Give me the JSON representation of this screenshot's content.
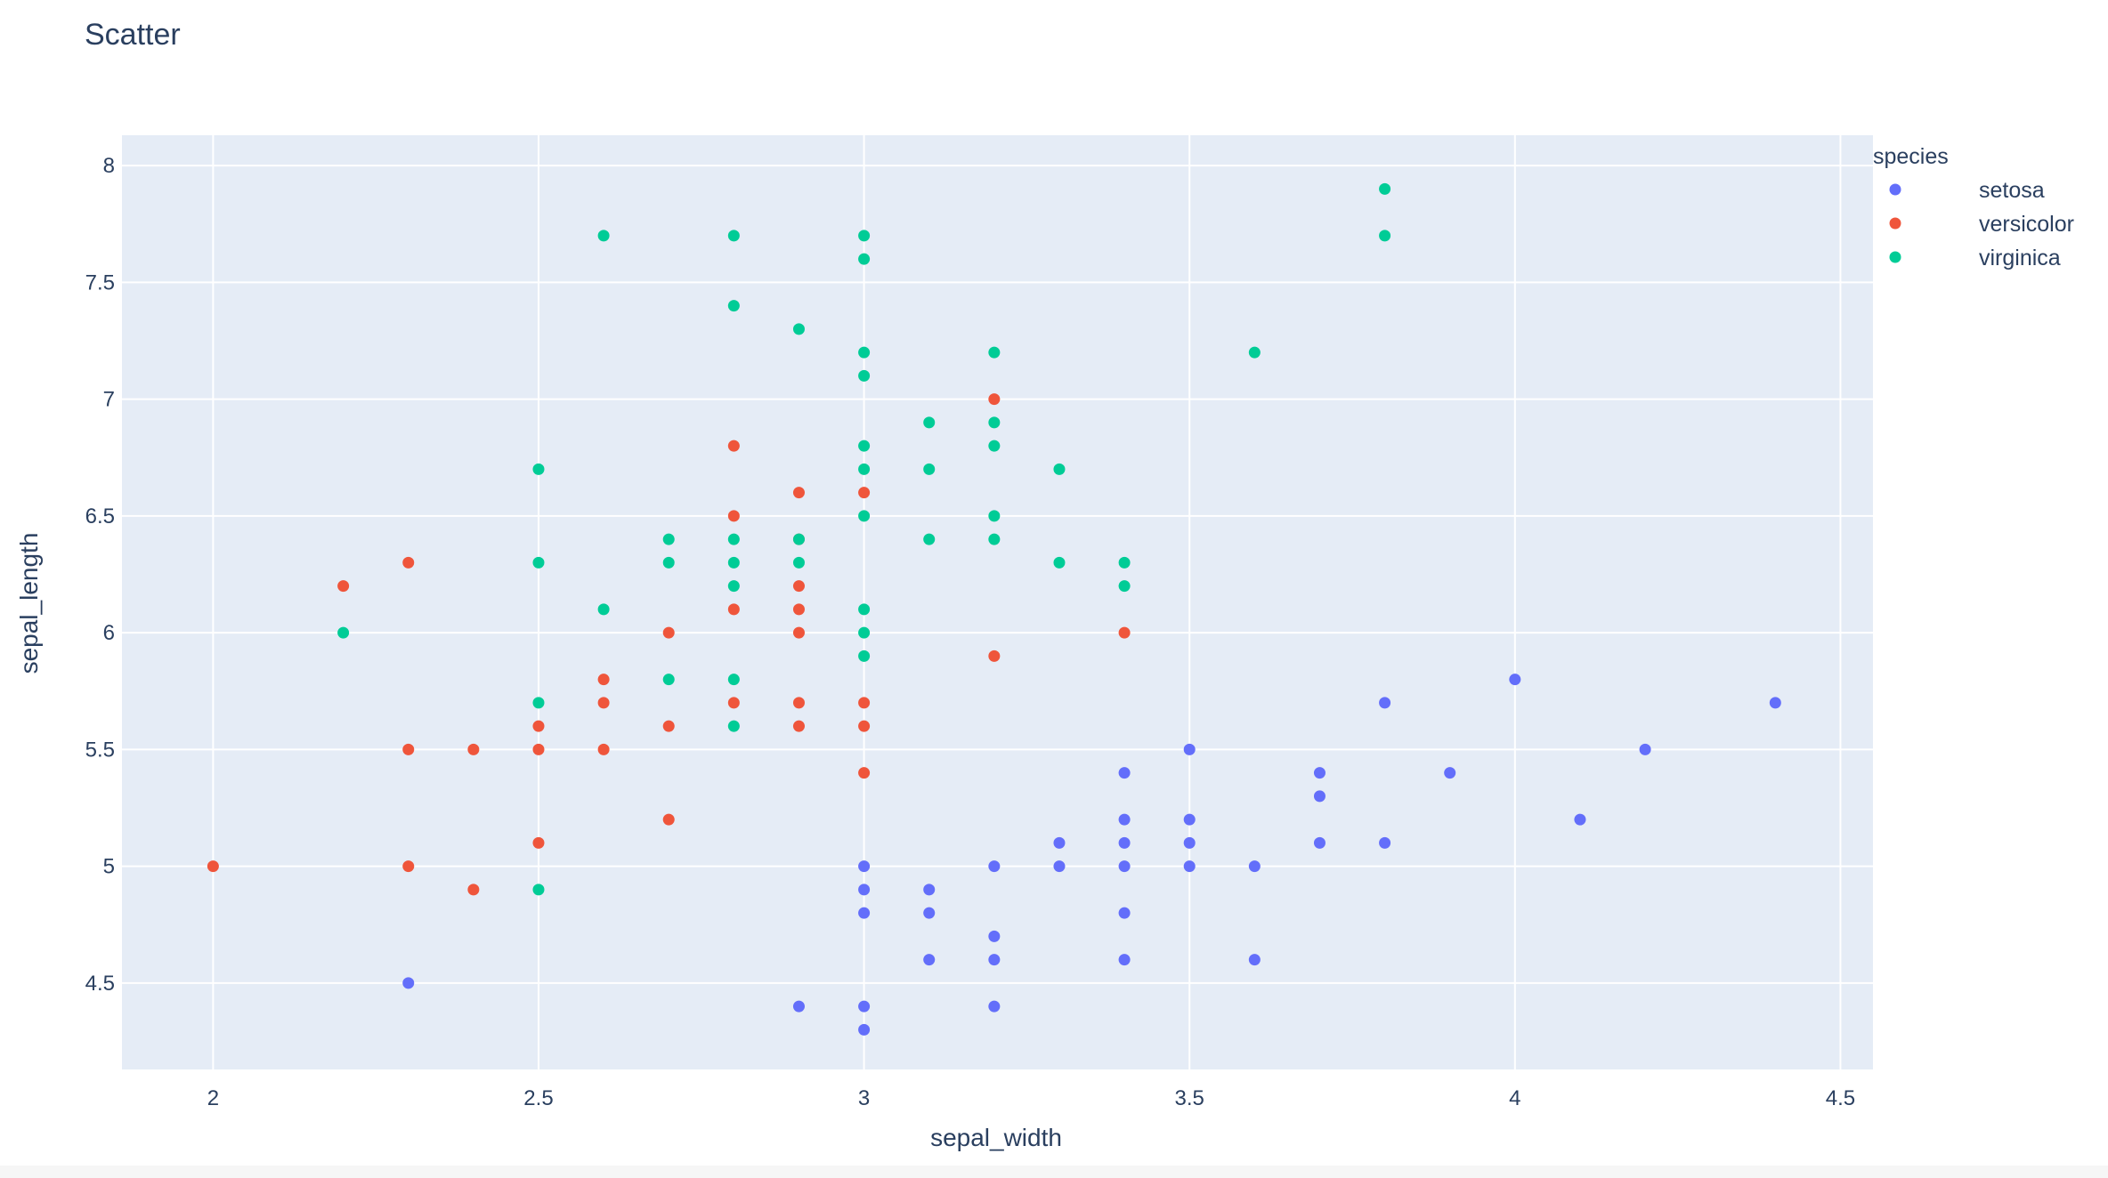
{
  "chart_data": {
    "type": "scatter",
    "title": "Scatter",
    "xlabel": "sepal_width",
    "ylabel": "sepal_length",
    "xlim": [
      1.86,
      4.55
    ],
    "ylim": [
      4.13,
      8.13
    ],
    "xticks": [
      2,
      2.5,
      3,
      3.5,
      4,
      4.5
    ],
    "xtick_labels": [
      "2",
      "2.5",
      "3",
      "3.5",
      "4",
      "4.5"
    ],
    "yticks": [
      4.5,
      5,
      5.5,
      6,
      6.5,
      7,
      7.5,
      8
    ],
    "ytick_labels": [
      "4.5",
      "5",
      "5.5",
      "6",
      "6.5",
      "7",
      "7.5",
      "8"
    ],
    "grid": true,
    "legend": {
      "title": "species",
      "placement": "right"
    },
    "series": [
      {
        "name": "setosa",
        "color": "#636efa",
        "points": [
          [
            2.3,
            4.5
          ],
          [
            2.9,
            4.4
          ],
          [
            3.0,
            4.4
          ],
          [
            3.0,
            4.3
          ],
          [
            3.2,
            4.4
          ],
          [
            3.0,
            5.0
          ],
          [
            3.0,
            4.9
          ],
          [
            3.0,
            4.8
          ],
          [
            3.1,
            4.9
          ],
          [
            3.1,
            4.8
          ],
          [
            3.1,
            4.6
          ],
          [
            3.2,
            5.0
          ],
          [
            3.2,
            4.7
          ],
          [
            3.2,
            4.6
          ],
          [
            3.3,
            5.1
          ],
          [
            3.3,
            5.0
          ],
          [
            3.4,
            5.4
          ],
          [
            3.4,
            5.2
          ],
          [
            3.4,
            5.1
          ],
          [
            3.4,
            5.0
          ],
          [
            3.4,
            4.8
          ],
          [
            3.4,
            4.6
          ],
          [
            3.5,
            5.5
          ],
          [
            3.5,
            5.2
          ],
          [
            3.5,
            5.1
          ],
          [
            3.5,
            5.0
          ],
          [
            3.6,
            5.0
          ],
          [
            3.6,
            4.6
          ],
          [
            3.7,
            5.4
          ],
          [
            3.7,
            5.3
          ],
          [
            3.7,
            5.1
          ],
          [
            3.8,
            5.7
          ],
          [
            3.8,
            5.1
          ],
          [
            3.9,
            5.4
          ],
          [
            4.0,
            5.8
          ],
          [
            4.1,
            5.2
          ],
          [
            4.2,
            5.5
          ],
          [
            4.4,
            5.7
          ]
        ]
      },
      {
        "name": "versicolor",
        "color": "#ef553b",
        "points": [
          [
            2.0,
            5.0
          ],
          [
            2.2,
            6.2
          ],
          [
            2.3,
            6.3
          ],
          [
            2.3,
            5.5
          ],
          [
            2.3,
            5.0
          ],
          [
            2.4,
            5.5
          ],
          [
            2.4,
            4.9
          ],
          [
            2.5,
            5.6
          ],
          [
            2.5,
            5.5
          ],
          [
            2.5,
            5.1
          ],
          [
            2.6,
            5.8
          ],
          [
            2.6,
            5.7
          ],
          [
            2.6,
            5.5
          ],
          [
            2.7,
            6.0
          ],
          [
            2.7,
            5.6
          ],
          [
            2.7,
            5.2
          ],
          [
            2.8,
            6.8
          ],
          [
            2.8,
            6.5
          ],
          [
            2.8,
            6.1
          ],
          [
            2.8,
            5.7
          ],
          [
            2.9,
            6.6
          ],
          [
            2.9,
            6.4
          ],
          [
            2.9,
            6.2
          ],
          [
            2.9,
            6.1
          ],
          [
            2.9,
            6.0
          ],
          [
            2.9,
            5.7
          ],
          [
            2.9,
            5.6
          ],
          [
            3.0,
            6.6
          ],
          [
            3.0,
            5.7
          ],
          [
            3.0,
            5.6
          ],
          [
            3.0,
            5.4
          ],
          [
            3.2,
            7.0
          ],
          [
            3.2,
            5.9
          ],
          [
            3.4,
            6.0
          ]
        ]
      },
      {
        "name": "virginica",
        "color": "#00cc96",
        "points": [
          [
            2.2,
            6.0
          ],
          [
            2.5,
            6.7
          ],
          [
            2.5,
            6.3
          ],
          [
            2.5,
            5.7
          ],
          [
            2.5,
            4.9
          ],
          [
            2.6,
            7.7
          ],
          [
            2.6,
            6.1
          ],
          [
            2.7,
            6.4
          ],
          [
            2.7,
            6.3
          ],
          [
            2.7,
            5.8
          ],
          [
            2.8,
            7.7
          ],
          [
            2.8,
            7.4
          ],
          [
            2.8,
            6.4
          ],
          [
            2.8,
            6.3
          ],
          [
            2.8,
            6.2
          ],
          [
            2.8,
            5.8
          ],
          [
            2.8,
            5.6
          ],
          [
            2.9,
            7.3
          ],
          [
            2.9,
            6.4
          ],
          [
            2.9,
            6.3
          ],
          [
            3.0,
            7.7
          ],
          [
            3.0,
            7.6
          ],
          [
            3.0,
            7.2
          ],
          [
            3.0,
            7.1
          ],
          [
            3.0,
            6.8
          ],
          [
            3.0,
            6.7
          ],
          [
            3.0,
            6.5
          ],
          [
            3.0,
            6.1
          ],
          [
            3.0,
            6.0
          ],
          [
            3.0,
            5.9
          ],
          [
            3.1,
            6.9
          ],
          [
            3.1,
            6.7
          ],
          [
            3.1,
            6.4
          ],
          [
            3.2,
            7.2
          ],
          [
            3.2,
            6.9
          ],
          [
            3.2,
            6.8
          ],
          [
            3.2,
            6.5
          ],
          [
            3.2,
            6.4
          ],
          [
            3.3,
            6.7
          ],
          [
            3.3,
            6.3
          ],
          [
            3.4,
            6.3
          ],
          [
            3.4,
            6.2
          ],
          [
            3.6,
            7.2
          ],
          [
            3.8,
            7.9
          ],
          [
            3.8,
            7.7
          ]
        ]
      }
    ]
  }
}
